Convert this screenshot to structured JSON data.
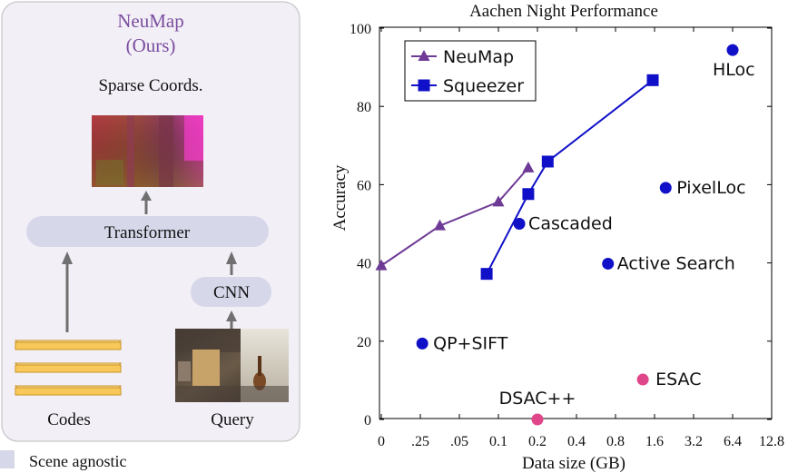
{
  "diagram": {
    "method_title": "NeuMap",
    "method_subtitle": "(Ours)",
    "output_label": "Sparse Coords.",
    "transformer_label": "Transformer",
    "cnn_label": "CNN",
    "codes_label": "Codes",
    "query_label": "Query",
    "legend_label": "Scene agnostic",
    "colors": {
      "panel_bg": "#f3eff7",
      "panel_border": "#c8c8c8",
      "box_fill": "#d6d8ea",
      "title_purple": "#7a4e9e",
      "code_fill": "#f8c85a",
      "code_edge": "#c99322",
      "arrow": "#707070"
    }
  },
  "chart_data": {
    "type": "scatter",
    "title": "Aachen Night Performance",
    "xlabel": "Data size (GB)",
    "ylabel": "Accuracy",
    "x_ticks": [
      "0",
      ".25",
      ".05",
      "0.1",
      "0.2",
      "0.4",
      "0.8",
      "1.6",
      "3.2",
      "6.4",
      "12.8"
    ],
    "ylim": [
      0,
      100
    ],
    "y_ticks": [
      0,
      20,
      40,
      60,
      80,
      100
    ],
    "grid": false,
    "legend_position": "top-left",
    "series": [
      {
        "name": "NeuMap",
        "marker": "triangle",
        "color": "#6e3a96",
        "points": [
          {
            "x": 0,
            "y": 39.3
          },
          {
            "x": 0.05,
            "y": 49.5
          },
          {
            "x": 0.1,
            "y": 55.6
          },
          {
            "x": 0.17,
            "y": 64.3
          }
        ]
      },
      {
        "name": "Squeezer",
        "marker": "square",
        "color": "#1010c8",
        "points": [
          {
            "x": 0.09,
            "y": 37.2
          },
          {
            "x": 0.17,
            "y": 57.6
          },
          {
            "x": 0.24,
            "y": 65.9
          },
          {
            "x": 1.55,
            "y": 86.7
          }
        ]
      }
    ],
    "points": [
      {
        "label": "HLoc",
        "x": 6.4,
        "y": 94.4,
        "color": "#1010c8"
      },
      {
        "label": "PixelLoc",
        "x": 1.95,
        "y": 59.2,
        "color": "#1010c8"
      },
      {
        "label": "Cascaded",
        "x": 0.145,
        "y": 50.0,
        "color": "#1010c8"
      },
      {
        "label": "Active Search",
        "x": 0.7,
        "y": 39.8,
        "color": "#1010c8"
      },
      {
        "label": "QP+SIFT",
        "x": 0.035,
        "y": 19.4,
        "color": "#1010c8"
      },
      {
        "label": "ESAC",
        "x": 1.3,
        "y": 10.2,
        "color": "#e0478a"
      },
      {
        "label": "DSAC++",
        "x": 0.2,
        "y": 0,
        "color": "#e0478a"
      }
    ]
  }
}
